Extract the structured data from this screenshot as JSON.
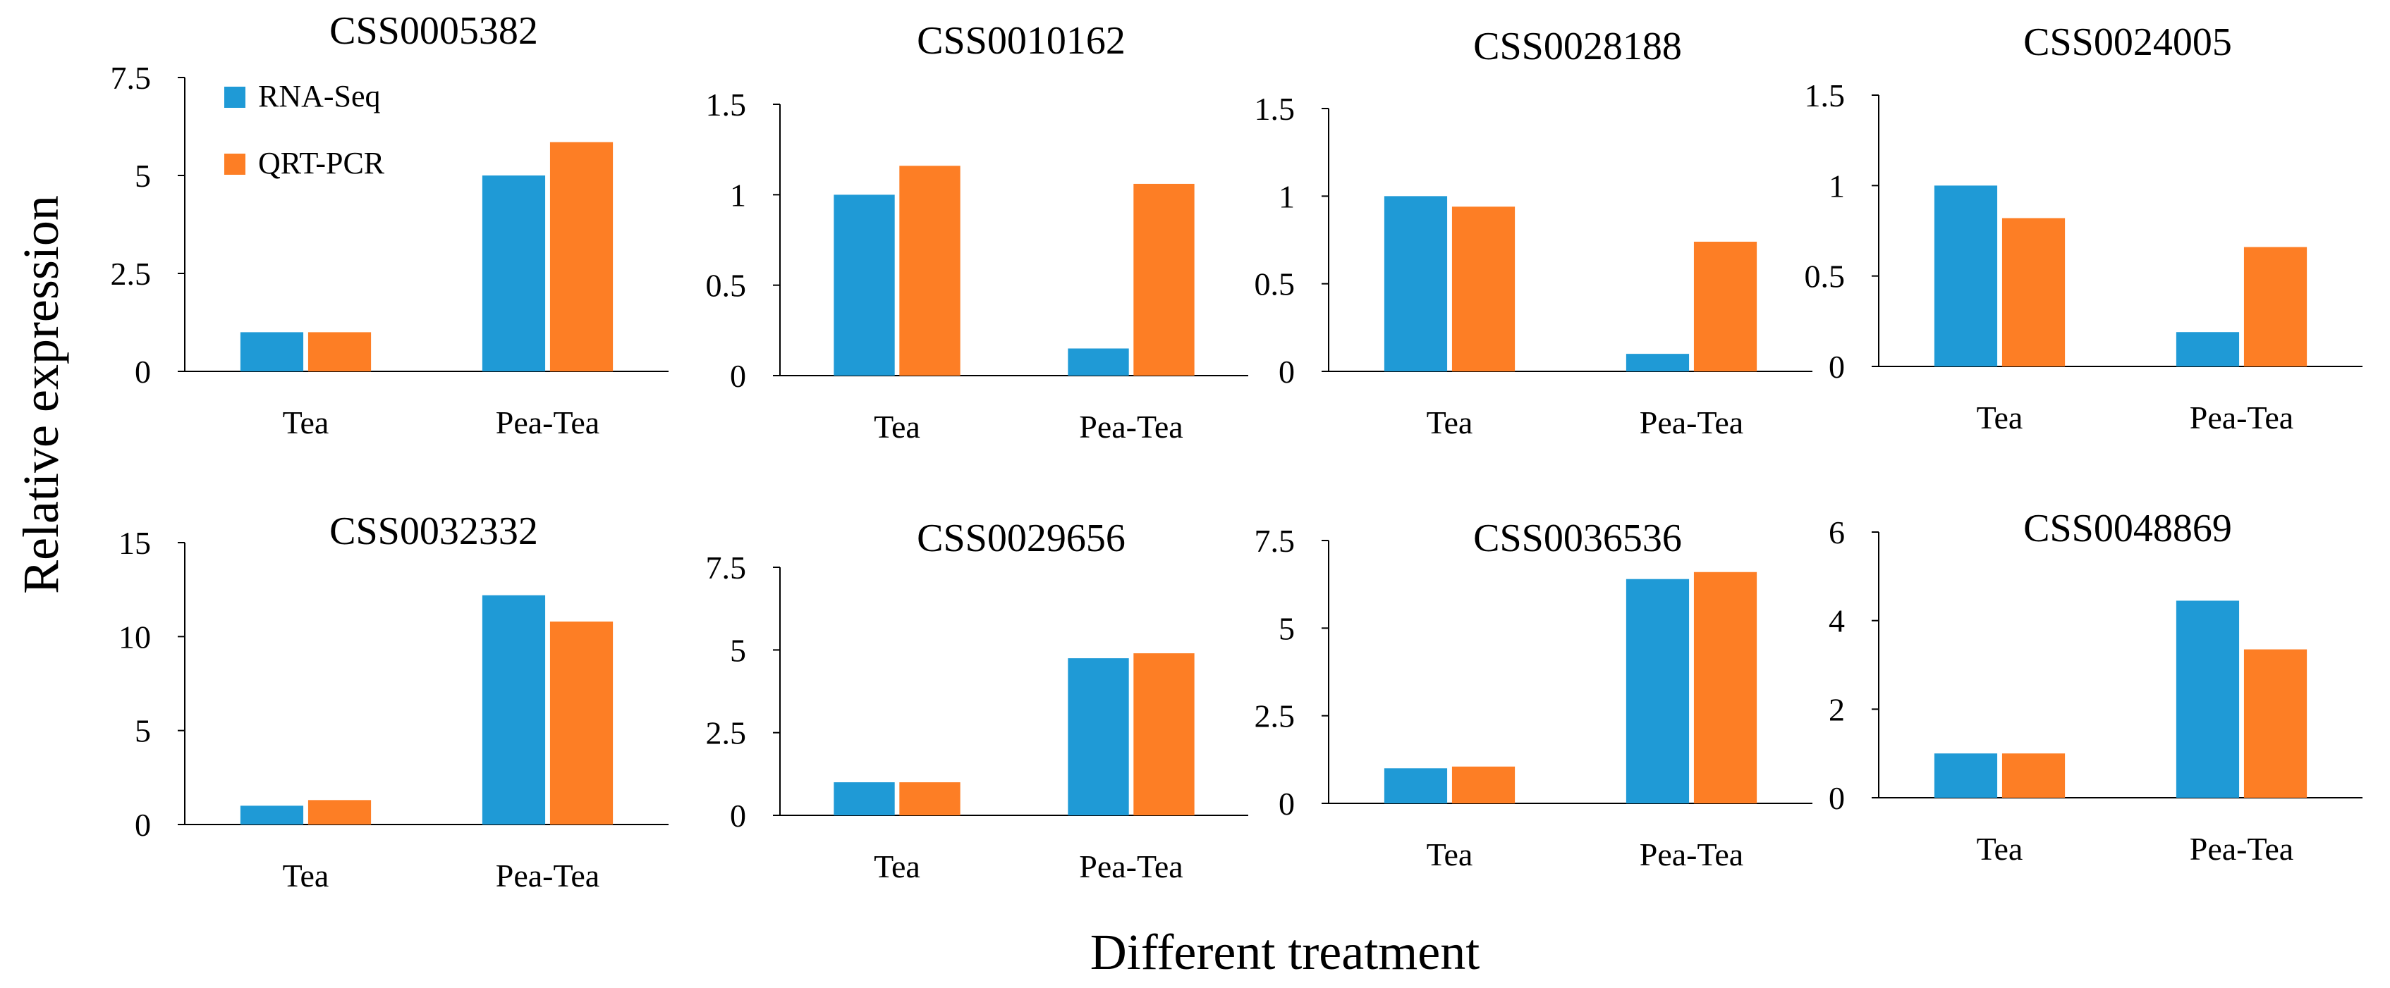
{
  "chart_data": {
    "type": "bar",
    "layout": "grid 2x4 small multiples",
    "ylabel": "Relative expression",
    "xlabel": "Different treatment",
    "categories": [
      "Tea",
      "Pea-Tea"
    ],
    "legend": {
      "placement": "top-left of first panel",
      "entries": [
        {
          "name": "RNA-Seq",
          "color": "#1f9ad6"
        },
        {
          "name": "QRT-PCR",
          "color": "#fd7e25"
        }
      ]
    },
    "panels": [
      {
        "title": "CSS0005382",
        "ylim": [
          0,
          7.5
        ],
        "ticks": [
          0,
          2.5,
          5,
          7.5
        ],
        "tick_labels": [
          "0",
          "2.5",
          "5",
          "7.5"
        ],
        "series": [
          {
            "name": "RNA-Seq",
            "values": [
              1.0,
              5.0
            ]
          },
          {
            "name": "QRT-PCR",
            "values": [
              1.0,
              5.85
            ]
          }
        ]
      },
      {
        "title": "CSS0010162",
        "ylim": [
          0,
          1.5
        ],
        "ticks": [
          0,
          0.5,
          1,
          1.5
        ],
        "tick_labels": [
          "0",
          "0.5",
          "1",
          "1.5"
        ],
        "series": [
          {
            "name": "RNA-Seq",
            "values": [
              1.0,
              0.15
            ]
          },
          {
            "name": "QRT-PCR",
            "values": [
              1.16,
              1.06
            ]
          }
        ]
      },
      {
        "title": "CSS0028188",
        "ylim": [
          0,
          1.5
        ],
        "ticks": [
          0,
          0.5,
          1,
          1.5
        ],
        "tick_labels": [
          "0",
          "0.5",
          "1",
          "1.5"
        ],
        "series": [
          {
            "name": "RNA-Seq",
            "values": [
              1.0,
              0.1
            ]
          },
          {
            "name": "QRT-PCR",
            "values": [
              0.94,
              0.74
            ]
          }
        ]
      },
      {
        "title": "CSS0024005",
        "ylim": [
          0,
          1.5
        ],
        "ticks": [
          0,
          0.5,
          1,
          1.5
        ],
        "tick_labels": [
          "0",
          "0.5",
          "1",
          "1.5"
        ],
        "series": [
          {
            "name": "RNA-Seq",
            "values": [
              1.0,
              0.19
            ]
          },
          {
            "name": "QRT-PCR",
            "values": [
              0.82,
              0.66
            ]
          }
        ]
      },
      {
        "title": "CSS0032332",
        "ylim": [
          0,
          15
        ],
        "ticks": [
          0,
          5,
          10,
          15
        ],
        "tick_labels": [
          "0",
          "5",
          "10",
          "15"
        ],
        "series": [
          {
            "name": "RNA-Seq",
            "values": [
              1.0,
              12.2
            ]
          },
          {
            "name": "QRT-PCR",
            "values": [
              1.3,
              10.8
            ]
          }
        ]
      },
      {
        "title": "CSS0029656",
        "ylim": [
          0,
          7.5
        ],
        "ticks": [
          0,
          2.5,
          5,
          7.5
        ],
        "tick_labels": [
          "0",
          "2.5",
          "5",
          "7.5"
        ],
        "series": [
          {
            "name": "RNA-Seq",
            "values": [
              1.0,
              4.75
            ]
          },
          {
            "name": "QRT-PCR",
            "values": [
              1.0,
              4.9
            ]
          }
        ]
      },
      {
        "title": "CSS0036536",
        "ylim": [
          0,
          7.5
        ],
        "ticks": [
          0,
          2.5,
          5,
          7.5
        ],
        "tick_labels": [
          "0",
          "2.5",
          "5",
          "7.5"
        ],
        "series": [
          {
            "name": "RNA-Seq",
            "values": [
              1.0,
              6.4
            ]
          },
          {
            "name": "QRT-PCR",
            "values": [
              1.05,
              6.6
            ]
          }
        ]
      },
      {
        "title": "CSS0048869",
        "ylim": [
          0,
          6
        ],
        "ticks": [
          0,
          2,
          4,
          6
        ],
        "tick_labels": [
          "0",
          "2",
          "4",
          "6"
        ],
        "series": [
          {
            "name": "RNA-Seq",
            "values": [
              1.0,
              4.45
            ]
          },
          {
            "name": "QRT-PCR",
            "values": [
              1.0,
              3.35
            ]
          }
        ]
      }
    ]
  }
}
